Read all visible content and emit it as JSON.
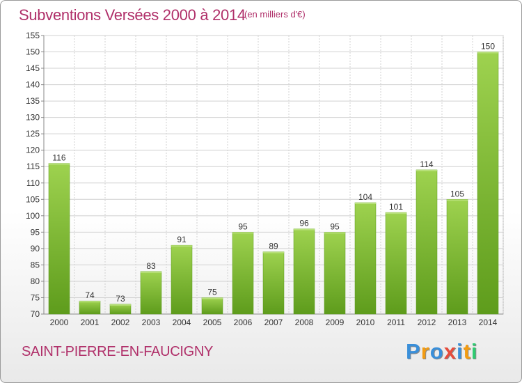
{
  "chart_data": {
    "type": "bar",
    "title": "Subventions Versées 2000 à 2014",
    "subtitle": "(en milliers d'€)",
    "categories": [
      "2000",
      "2001",
      "2002",
      "2003",
      "2004",
      "2005",
      "2006",
      "2007",
      "2008",
      "2009",
      "2010",
      "2011",
      "2012",
      "2013",
      "2014"
    ],
    "values": [
      116,
      74,
      73,
      83,
      91,
      75,
      95,
      89,
      96,
      95,
      104,
      101,
      114,
      105,
      150
    ],
    "ylim": [
      70,
      155
    ],
    "yticks": [
      70,
      75,
      80,
      85,
      90,
      95,
      100,
      105,
      110,
      115,
      120,
      125,
      130,
      135,
      140,
      145,
      150,
      155
    ],
    "grid": true,
    "bar_color": "#8cc63f",
    "bar_color_dark": "#5a9a1a"
  },
  "commune": "SAINT-PIERRE-EN-FAUCIGNY",
  "logo": {
    "letters": [
      "P",
      "r",
      "o",
      "x",
      "i",
      "t",
      "i"
    ],
    "colors": [
      "#3a8fd9",
      "#f39c12",
      "#3a8fd9",
      "#e74c3c",
      "#3a8fd9",
      "#f39c12",
      "#2ecc71"
    ]
  },
  "title_color": "#b0306a"
}
